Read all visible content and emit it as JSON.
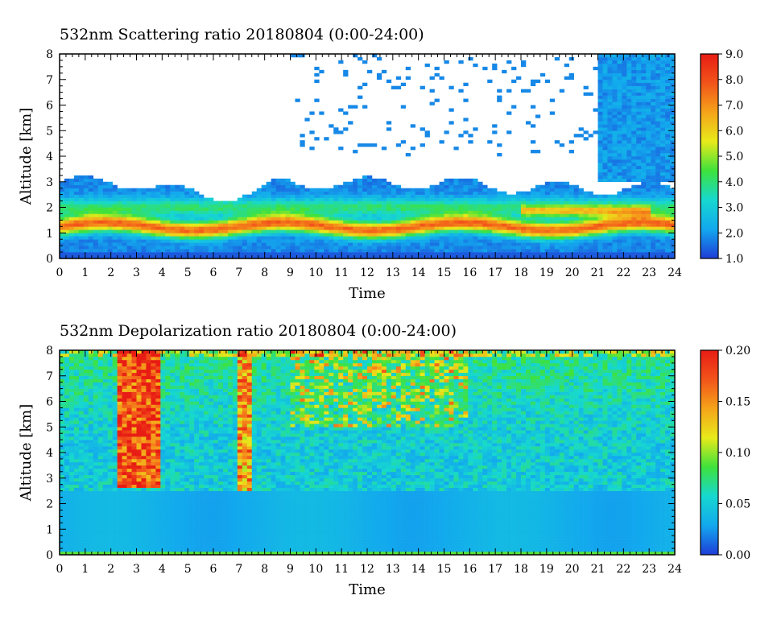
{
  "chart_data": [
    {
      "type": "heatmap",
      "title": "532nm Scattering ratio  20180804 (0:00-24:00)",
      "xlabel": "Time",
      "ylabel": "Altitude [km]",
      "xlim": [
        0,
        24
      ],
      "ylim": [
        0,
        8
      ],
      "xticks": [
        "0",
        "1",
        "2",
        "3",
        "4",
        "5",
        "6",
        "7",
        "8",
        "9",
        "10",
        "11",
        "12",
        "13",
        "14",
        "15",
        "16",
        "17",
        "18",
        "19",
        "20",
        "21",
        "22",
        "23",
        "24"
      ],
      "yticks": [
        "0",
        "1",
        "2",
        "3",
        "4",
        "5",
        "6",
        "7",
        "8"
      ],
      "colorbar": {
        "min": 1.0,
        "max": 9.0,
        "ticks": [
          "1.0",
          "2.0",
          "3.0",
          "4.0",
          "5.0",
          "6.0",
          "7.0",
          "8.0",
          "9.0"
        ],
        "colors": [
          "#1f3dd8",
          "#12a8ee",
          "#16d8d0",
          "#3ee23c",
          "#e8ea1a",
          "#f5a41a",
          "#f2541a",
          "#e81c14"
        ]
      },
      "layers": [
        {
          "name": "surface",
          "altitude_km": [
            0.0,
            0.25
          ],
          "value": 1.5
        },
        {
          "name": "lower_layer",
          "altitude_km": [
            0.3,
            0.8
          ],
          "value": 2.2
        },
        {
          "name": "aerosol_core",
          "altitude_km": [
            0.9,
            1.6
          ],
          "value": 7.0
        },
        {
          "name": "upper_transition",
          "altitude_km": [
            1.7,
            2.5
          ],
          "value": 4.0
        },
        {
          "name": "layer_top",
          "altitude_km": [
            2.5,
            3.1
          ],
          "value": 2.2
        },
        {
          "name": "high_cirrus_after_21h",
          "time_h": [
            21,
            24
          ],
          "altitude_km": [
            3.0,
            8.0
          ],
          "value": 2.0
        }
      ]
    },
    {
      "type": "heatmap",
      "title": "532nm Depolarization ratio  20180804 (0:00-24:00)",
      "xlabel": "Time",
      "ylabel": "Altitude [km]",
      "xlim": [
        0,
        24
      ],
      "ylim": [
        0,
        8
      ],
      "xticks": [
        "0",
        "1",
        "2",
        "3",
        "4",
        "5",
        "6",
        "7",
        "8",
        "9",
        "10",
        "11",
        "12",
        "13",
        "14",
        "15",
        "16",
        "17",
        "18",
        "19",
        "20",
        "21",
        "22",
        "23",
        "24"
      ],
      "yticks": [
        "0",
        "1",
        "2",
        "3",
        "4",
        "5",
        "6",
        "7",
        "8"
      ],
      "colorbar": {
        "min": 0.0,
        "max": 0.2,
        "ticks": [
          "0.00",
          "0.05",
          "0.10",
          "0.15",
          "0.20"
        ],
        "colors": [
          "#1f3dd8",
          "#12a8ee",
          "#16d8d0",
          "#3ee23c",
          "#e8ea1a",
          "#f5a41a",
          "#f2541a",
          "#e81c14"
        ]
      },
      "layers": [
        {
          "name": "boundary_layer",
          "altitude_km": [
            0.0,
            2.5
          ],
          "value": 0.035
        },
        {
          "name": "free_troposphere",
          "altitude_km": [
            2.5,
            8.0
          ],
          "value": 0.05
        },
        {
          "name": "high_depol_column_1",
          "time_h": [
            2.3,
            4.0
          ],
          "altitude_km": [
            2.6,
            8.0
          ],
          "value": 0.18
        },
        {
          "name": "high_depol_column_2",
          "time_h": [
            7.0,
            7.5
          ],
          "altitude_km": [
            2.5,
            8.0
          ],
          "value": 0.14
        },
        {
          "name": "upper_speckle",
          "time_h": [
            9.0,
            16.0
          ],
          "altitude_km": [
            5.0,
            8.0
          ],
          "value": 0.13
        }
      ]
    }
  ]
}
